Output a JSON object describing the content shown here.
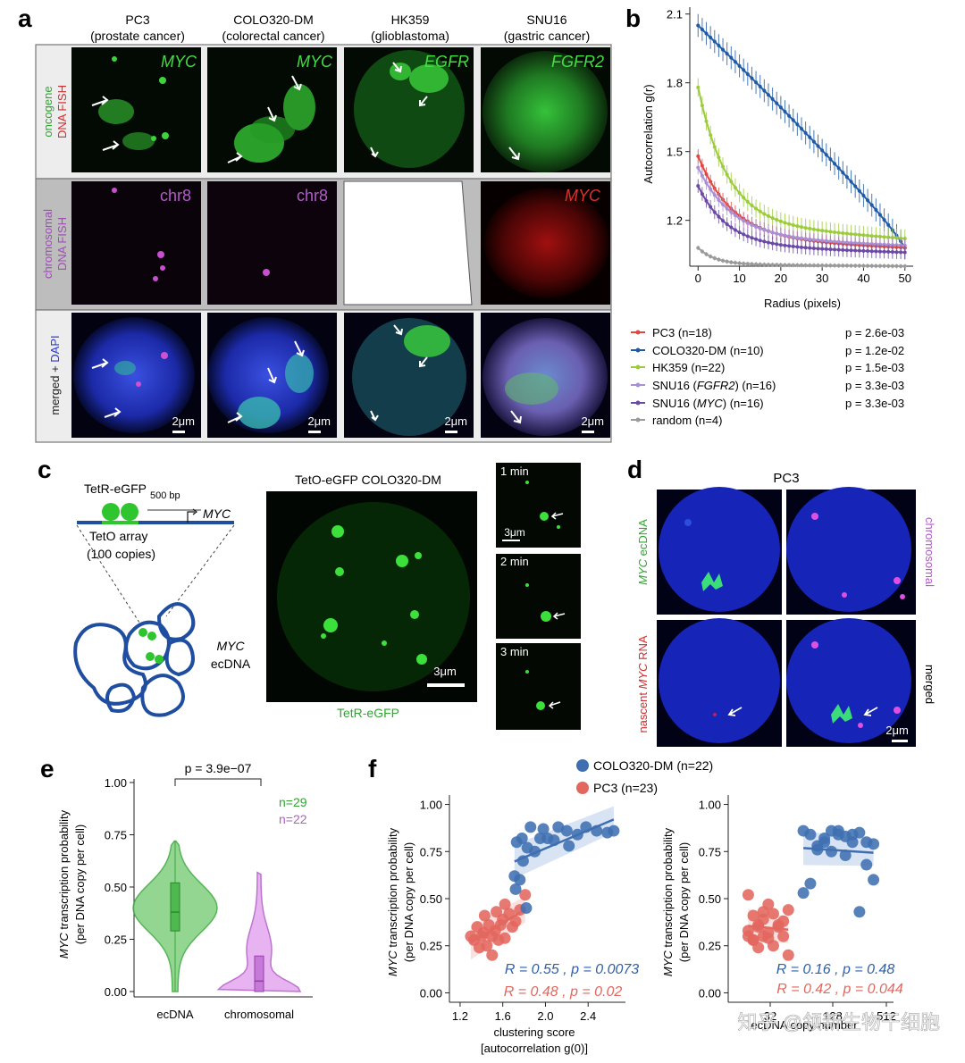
{
  "panel_letters": {
    "a": "a",
    "b": "b",
    "c": "c",
    "d": "d",
    "e": "e",
    "f": "f"
  },
  "panel_a": {
    "columns": [
      {
        "name": "PC3",
        "sub": "(prostate cancer)",
        "oncogene": "MYC",
        "chromo": "chr8"
      },
      {
        "name": "COLO320-DM",
        "sub": "(colorectal cancer)",
        "oncogene": "MYC",
        "chromo": "chr8"
      },
      {
        "name": "HK359",
        "sub": "(glioblastoma)",
        "oncogene": "EGFR",
        "chromo": ""
      },
      {
        "name": "SNU16",
        "sub": "(gastric cancer)",
        "oncogene": "FGFR2",
        "chromo": "MYC"
      }
    ],
    "row_labels": {
      "row1_line1": "oncogene",
      "row1_line2_a": "DNA ",
      "row1_line2_b": "FISH",
      "row2_line1": "chromosomal",
      "row2_line2": "DNA FISH",
      "row3_a": "merged + ",
      "row3_b": "DAPI"
    },
    "scale": "2μm"
  },
  "panel_b": {
    "y_label": "Autocorrelation g(r)",
    "x_label": "Radius (pixels)",
    "legend": [
      {
        "name": "PC3 (n=18)",
        "p": "p = 2.6e-03",
        "color": "#e0483f"
      },
      {
        "name": "COLO320-DM (n=10)",
        "p": "p = 1.2e-02",
        "color": "#1f5aa6"
      },
      {
        "name": "HK359 (n=22)",
        "p": "p = 1.5e-03",
        "color": "#9ccc3c"
      },
      {
        "name_a": "SNU16 (",
        "name_i": "FGFR2",
        "name_b": ") (n=16)",
        "p": "p = 3.3e-03",
        "color": "#a98fd6"
      },
      {
        "name_a": "SNU16 (",
        "name_i": "MYC",
        "name_b": ") (n=16)",
        "p": "p = 3.3e-03",
        "color": "#6a4aa6"
      },
      {
        "name": "random (n=4)",
        "p": "",
        "color": "#9a9a9a"
      }
    ],
    "chart_data": {
      "type": "line",
      "x_ticks": [
        0,
        10,
        20,
        30,
        40,
        50
      ],
      "y_ticks": [
        1.2,
        1.5,
        1.8,
        2.1
      ],
      "y_tick_labels": [
        "1.2",
        "1.5",
        "1.8",
        "2.1"
      ],
      "xlim": [
        -2,
        52
      ],
      "ylim": [
        1.0,
        2.13
      ],
      "series": [
        {
          "name": "COLO320-DM (n=10)",
          "color": "#1f5aa6",
          "start": 2.05,
          "end": 1.08,
          "k": 0.022,
          "err": 0.05
        },
        {
          "name": "HK359 (n=22)",
          "color": "#9ccc3c",
          "start": 1.78,
          "end": 1.12,
          "k": 0.07,
          "err": 0.04
        },
        {
          "name": "PC3 (n=18)",
          "color": "#e0483f",
          "start": 1.48,
          "end": 1.08,
          "k": 0.06,
          "err": 0.03
        },
        {
          "name": "SNU16 (FGFR2) (n=16)",
          "color": "#a98fd6",
          "start": 1.43,
          "end": 1.09,
          "k": 0.06,
          "err": 0.03
        },
        {
          "name": "SNU16 (MYC) (n=16)",
          "color": "#6a4aa6",
          "start": 1.35,
          "end": 1.06,
          "k": 0.07,
          "err": 0.03
        },
        {
          "name": "random (n=4)",
          "color": "#9a9a9a",
          "start": 1.08,
          "end": 1.0,
          "k": 0.12,
          "err": 0.01
        }
      ]
    }
  },
  "panel_c": {
    "tetr": "TetR-eGFP",
    "bp": "500 bp",
    "myc": "MYC",
    "teto": "TetO array",
    "copies": "(100 copies)",
    "ecdna_a": "MYC",
    "ecdna_b": "ecDNA",
    "main_title": "TetO-eGFP COLO320-DM",
    "main_caption": "TetR-eGFP",
    "main_scale": "3μm",
    "time": [
      "1 min",
      "2 min",
      "3 min"
    ],
    "time_scale": "3μm"
  },
  "panel_d": {
    "title": "PC3",
    "left_top_a": "MYC",
    "left_top_b": " ecDNA",
    "left_bottom_a": "nascent ",
    "left_bottom_b": "MYC",
    "left_bottom_c": " RNA",
    "right_top": "chromosomal",
    "right_bottom": "merged",
    "scale": "2μm"
  },
  "panel_e": {
    "y_line1_a": "MYC",
    "y_line1_b": " transcription probability",
    "y_line2": "(per DNA copy per cell)",
    "p": "p = 3.9e−07",
    "n1": "n=29",
    "n2": "n=22",
    "chart_data": {
      "type": "violin",
      "categories": [
        "ecDNA",
        "chromosomal"
      ],
      "y_ticks": [
        "1.00",
        "0.75",
        "0.50",
        "0.25",
        "0.00"
      ],
      "ecdna": {
        "median": 0.38,
        "q1": 0.29,
        "q3": 0.52,
        "min": 0.0,
        "max": 0.72
      },
      "chromosomal": {
        "median": 0.05,
        "q1": 0.0,
        "q3": 0.17,
        "min": 0.0,
        "max": 0.57
      }
    }
  },
  "panel_f": {
    "legend": [
      {
        "name": "COLO320-DM (n=22)",
        "color": "#3f6fb0"
      },
      {
        "name": "PC3 (n=23)",
        "color": "#e2675f"
      }
    ],
    "y_line1_a": "MYC",
    "y_line1_b": " transcription probability",
    "y_line2": "(per DNA copy per cell)",
    "left": {
      "x_label1": "clustering score",
      "x_label2": "[autocorrelation g(0)]",
      "x_ticks": [
        "1.2",
        "1.6",
        "2.0",
        "2.4"
      ],
      "y_ticks": [
        "1.00",
        "0.75",
        "0.50",
        "0.25",
        "0.00"
      ],
      "stat_blue": "R = 0.55 , p = 0.0073",
      "stat_red": "R = 0.48 , p = 0.02",
      "chart_data": {
        "type": "scatter",
        "xlim": [
          1.1,
          2.75
        ],
        "ylim": [
          -0.05,
          1.05
        ],
        "colo": [
          [
            1.72,
            0.55
          ],
          [
            1.76,
            0.6
          ],
          [
            1.73,
            0.8
          ],
          [
            1.78,
            0.82
          ],
          [
            1.83,
            0.77
          ],
          [
            1.86,
            0.88
          ],
          [
            1.9,
            0.75
          ],
          [
            1.95,
            0.82
          ],
          [
            1.98,
            0.87
          ],
          [
            2.02,
            0.82
          ],
          [
            2.08,
            0.81
          ],
          [
            2.12,
            0.88
          ],
          [
            2.2,
            0.86
          ],
          [
            2.22,
            0.78
          ],
          [
            2.3,
            0.84
          ],
          [
            2.38,
            0.88
          ],
          [
            2.48,
            0.86
          ],
          [
            2.58,
            0.85
          ],
          [
            2.64,
            0.86
          ],
          [
            1.82,
            0.45
          ],
          [
            1.79,
            0.7
          ],
          [
            1.71,
            0.62
          ]
        ],
        "pc3": [
          [
            1.3,
            0.3
          ],
          [
            1.33,
            0.28
          ],
          [
            1.36,
            0.35
          ],
          [
            1.4,
            0.3
          ],
          [
            1.42,
            0.32
          ],
          [
            1.45,
            0.25
          ],
          [
            1.47,
            0.36
          ],
          [
            1.5,
            0.3
          ],
          [
            1.5,
            0.2
          ],
          [
            1.53,
            0.33
          ],
          [
            1.56,
            0.28
          ],
          [
            1.58,
            0.36
          ],
          [
            1.6,
            0.39
          ],
          [
            1.62,
            0.29
          ],
          [
            1.66,
            0.42
          ],
          [
            1.69,
            0.35
          ],
          [
            1.72,
            0.38
          ],
          [
            1.76,
            0.44
          ],
          [
            1.81,
            0.52
          ],
          [
            1.43,
            0.41
          ],
          [
            1.38,
            0.24
          ],
          [
            1.54,
            0.43
          ],
          [
            1.62,
            0.47
          ]
        ]
      }
    },
    "right": {
      "x_ticks": [
        "32",
        "128",
        "512"
      ],
      "y_ticks": [
        "1.00",
        "0.75",
        "0.50",
        "0.25",
        "0.00"
      ],
      "x_label1": "ecDNA copy number",
      "stat_blue": "R = 0.16 , p = 0.48",
      "stat_red": "R = 0.42 , p = 0.044"
    }
  },
  "watermark": "知乎 @领新生物干细胞"
}
